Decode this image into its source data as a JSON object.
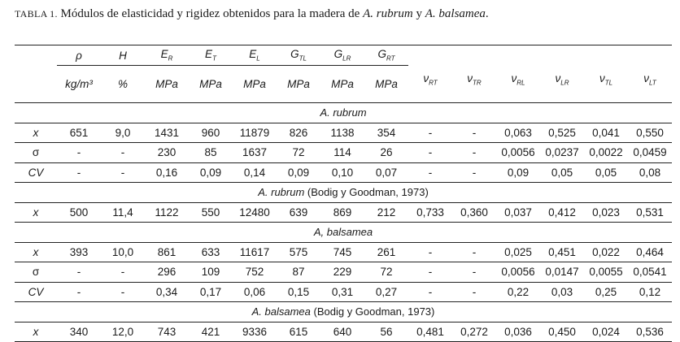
{
  "caption": {
    "label": "TABLA 1.",
    "parts": [
      {
        "text": "Módulos de elasticidad y rigidez obtenidos para la madera de ",
        "italic": false
      },
      {
        "text": "A. rubrum",
        "italic": true
      },
      {
        "text": " y ",
        "italic": false
      },
      {
        "text": "A. balsamea",
        "italic": true
      },
      {
        "text": ".",
        "italic": false
      }
    ]
  },
  "header": {
    "symbols": [
      {
        "symbol": "ρ",
        "sub": null
      },
      {
        "symbol": "H",
        "sub": null
      },
      {
        "symbol": "E",
        "sub": "R"
      },
      {
        "symbol": "E",
        "sub": "T"
      },
      {
        "symbol": "E",
        "sub": "L"
      },
      {
        "symbol": "G",
        "sub": "TL"
      },
      {
        "symbol": "G",
        "sub": "LR"
      },
      {
        "symbol": "G",
        "sub": "RT"
      },
      {
        "symbol": "ν",
        "sub": "RT"
      },
      {
        "symbol": "ν",
        "sub": "TR"
      },
      {
        "symbol": "ν",
        "sub": "RL"
      },
      {
        "symbol": "ν",
        "sub": "LR"
      },
      {
        "symbol": "ν",
        "sub": "TL"
      },
      {
        "symbol": "ν",
        "sub": "LT"
      }
    ],
    "units": [
      "kg/m³",
      "%",
      "MPa",
      "MPa",
      "MPa",
      "MPa",
      "MPa",
      "MPa"
    ]
  },
  "groups": [
    {
      "title": {
        "italic": "A. rubrum",
        "rest": null
      },
      "rows": [
        {
          "label": "x",
          "cells": [
            "651",
            "9,0",
            "1431",
            "960",
            "11879",
            "826",
            "1138",
            "354",
            "-",
            "-",
            "0,063",
            "0,525",
            "0,041",
            "0,550"
          ]
        },
        {
          "label": "σ",
          "cells": [
            "-",
            "-",
            "230",
            "85",
            "1637",
            "72",
            "114",
            "26",
            "-",
            "-",
            "0,0056",
            "0,0237",
            "0,0022",
            "0,0459"
          ]
        },
        {
          "label": "CV",
          "cells": [
            "-",
            "-",
            "0,16",
            "0,09",
            "0,14",
            "0,09",
            "0,10",
            "0,07",
            "-",
            "-",
            "0,09",
            "0,05",
            "0,05",
            "0,08"
          ]
        }
      ]
    },
    {
      "title": {
        "italic": "A. rubrum",
        "rest": " (Bodig y Goodman, 1973)"
      },
      "rows": [
        {
          "label": "x",
          "cells": [
            "500",
            "11,4",
            "1122",
            "550",
            "12480",
            "639",
            "869",
            "212",
            "0,733",
            "0,360",
            "0,037",
            "0,412",
            "0,023",
            "0,531"
          ]
        }
      ]
    },
    {
      "title": {
        "italic": "A, balsamea",
        "rest": null
      },
      "rows": [
        {
          "label": "x",
          "cells": [
            "393",
            "10,0",
            "861",
            "633",
            "11617",
            "575",
            "745",
            "261",
            "-",
            "-",
            "0,025",
            "0,451",
            "0,022",
            "0,464"
          ]
        },
        {
          "label": "σ",
          "cells": [
            "-",
            "-",
            "296",
            "109",
            "752",
            "87",
            "229",
            "72",
            "-",
            "-",
            "0,0056",
            "0,0147",
            "0,0055",
            "0,0541"
          ]
        },
        {
          "label": "CV",
          "cells": [
            "-",
            "-",
            "0,34",
            "0,17",
            "0,06",
            "0,15",
            "0,31",
            "0,27",
            "-",
            "-",
            "0,22",
            "0,03",
            "0,25",
            "0,12"
          ]
        }
      ]
    },
    {
      "title": {
        "italic": "A. balsamea",
        "rest": " (Bodig y Goodman, 1973)"
      },
      "rows": [
        {
          "label": "x",
          "cells": [
            "340",
            "12,0",
            "743",
            "421",
            "9336",
            "615",
            "640",
            "56",
            "0,481",
            "0,272",
            "0,036",
            "0,450",
            "0,024",
            "0,536"
          ]
        }
      ]
    }
  ]
}
